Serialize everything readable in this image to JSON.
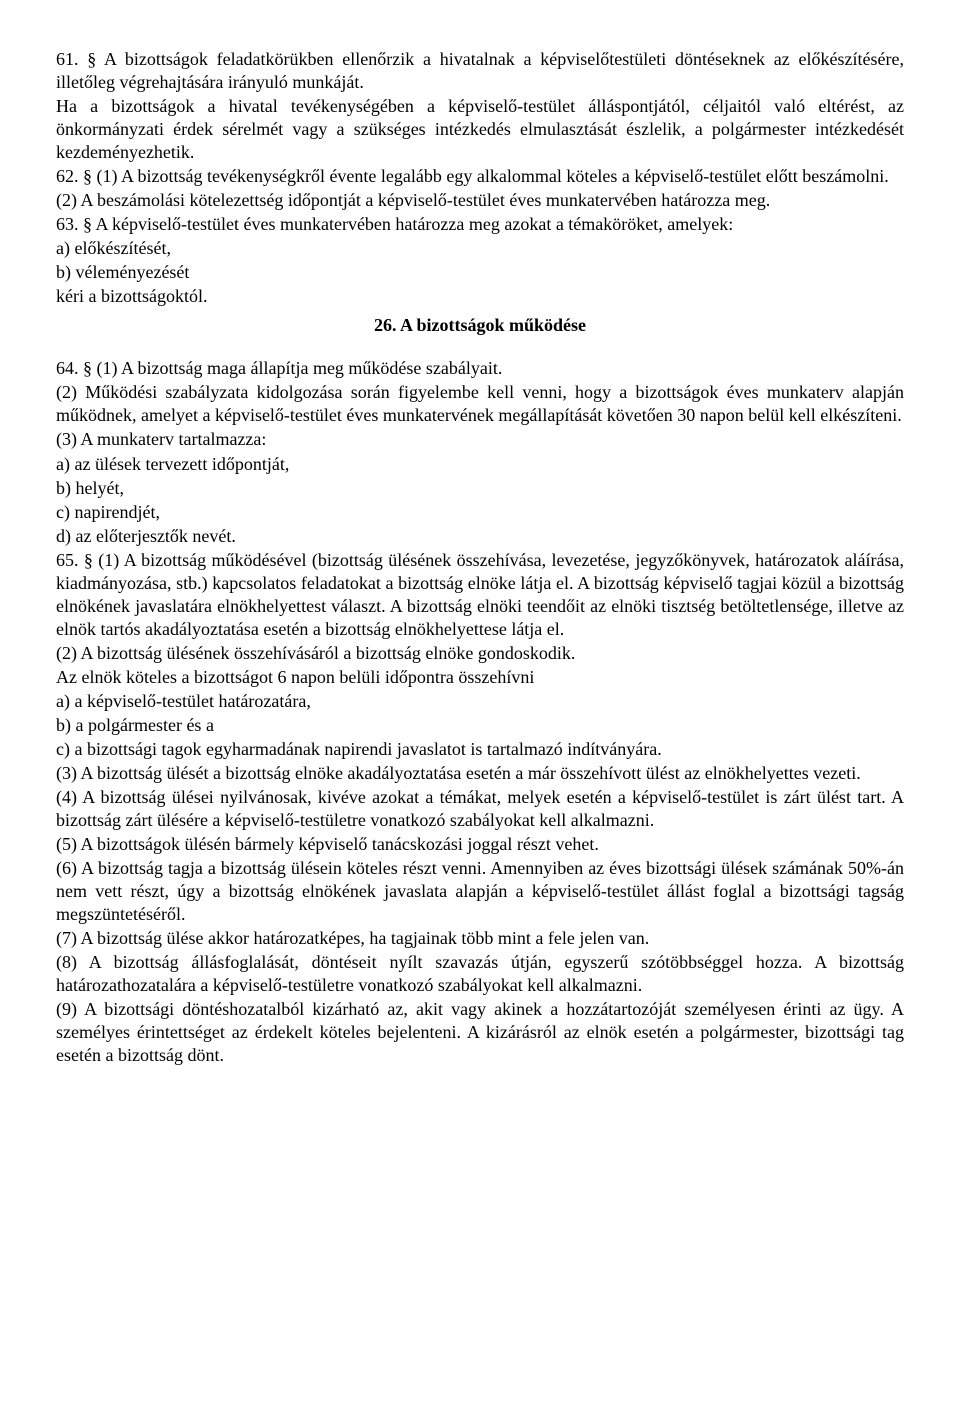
{
  "p61": "61. § A bizottságok feladatkörükben ellenőrzik a hivatalnak a képviselőtestületi döntéseknek az előkészítésére, illetőleg végrehajtására irányuló munkáját.",
  "p61b": "Ha a bizottságok a hivatal tevékenységében a képviselő-testület álláspontjától, céljaitól való eltérést, az önkormányzati érdek sérelmét vagy a szükséges intézkedés elmulasztását észlelik, a polgármester intézkedését kezdeményezhetik.",
  "p62_1": "62. § (1) A bizottság tevékenységkről évente legalább egy alkalommal köteles a képviselő-testület előtt beszámolni.",
  "p62_2": "(2) A beszámolási kötelezettség időpontját a képviselő-testület éves munkatervében határozza meg.",
  "p63": "63. § A képviselő-testület éves munkatervében határozza meg azokat a témaköröket, amelyek:",
  "p63a": "a) előkészítését,",
  "p63b": "b) véleményezését",
  "p63c": "kéri a bizottságoktól.",
  "section26": "26. A bizottságok működése",
  "p64_1": "64. § (1) A bizottság maga állapítja meg működése szabályait.",
  "p64_2": "(2) Működési szabályzata kidolgozása során figyelembe kell venni, hogy a bizottságok éves munkaterv alapján működnek, amelyet a képviselő-testület éves munkatervének megállapítását követően 30 napon belül kell elkészíteni.",
  "p64_3": "(3) A munkaterv tartalmazza:",
  "p64_3a": "a) az ülések tervezett időpontját,",
  "p64_3b": "b) helyét,",
  "p64_3c": "c) napirendjét,",
  "p64_3d": "d) az előterjesztők nevét.",
  "p65_1": "65. § (1) A bizottság működésével (bizottság ülésének összehívása, levezetése, jegyzőkönyvek, határozatok aláírása, kiadmányozása, stb.) kapcsolatos feladatokat a bizottság elnöke látja el. A bizottság képviselő tagjai közül a bizottság elnökének javaslatára elnökhelyettest választ. A bizottság elnöki teendőit az elnöki tisztség betöltetlensége, illetve az elnök tartós akadályoztatása esetén a bizottság elnökhelyettese látja el.",
  "p65_2": "(2) A bizottság ülésének összehívásáról a bizottság elnöke gondoskodik.",
  "p65_2b": "Az elnök köteles a bizottságot 6 napon belüli időpontra összehívni",
  "p65_2a_a": "a) a képviselő-testület határozatára,",
  "p65_2a_b": "b) a polgármester és a",
  "p65_2a_c": "c) a bizottsági tagok egyharmadának napirendi javaslatot is tartalmazó indítványára.",
  "p65_3": "(3) A bizottság ülését a bizottság elnöke akadályoztatása esetén a már összehívott ülést az elnökhelyettes vezeti.",
  "p65_4": "(4) A bizottság ülései nyilvánosak, kivéve azokat a témákat, melyek esetén a képviselő-testület is zárt ülést tart. A bizottság zárt ülésére a képviselő-testületre vonatkozó szabályokat kell alkalmazni.",
  "p65_5": "(5) A bizottságok ülésén bármely képviselő tanácskozási joggal részt vehet.",
  "p65_6": "(6) A bizottság tagja a bizottság ülésein köteles részt venni. Amennyiben az éves bizottsági ülések számának 50%-án nem vett részt, úgy a bizottság elnökének javaslata alapján a képviselő-testület állást foglal a bizottsági tagság megszüntetéséről.",
  "p65_7": "(7) A bizottság ülése akkor határozatképes, ha tagjainak több mint a fele jelen van.",
  "p65_8": "(8) A bizottság állásfoglalását, döntéseit nyílt szavazás útján, egyszerű szótöbbséggel hozza. A bizottság határozathozatalára a képviselő-testületre vonatkozó szabályokat kell alkalmazni.",
  "p65_9": "(9) A bizottsági döntéshozatalból kizárható az, akit vagy akinek a hozzátartozóját személyesen érinti az ügy. A személyes érintettséget az érdekelt köteles bejelenteni. A kizárásról az elnök esetén a polgármester, bizottsági tag esetén a bizottság dönt."
}
